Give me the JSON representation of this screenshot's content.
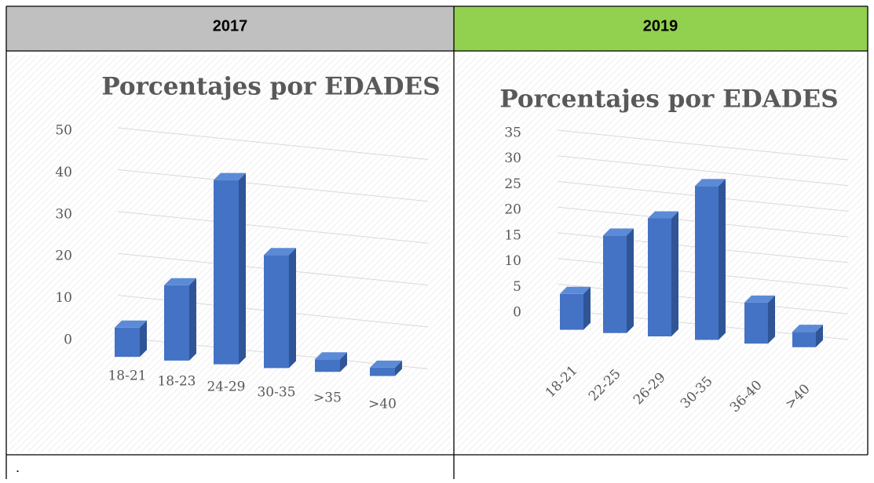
{
  "table": {
    "headers": [
      "2017",
      "2019"
    ],
    "footer": "."
  },
  "chart_data": [
    {
      "type": "bar",
      "title": "Porcentajes por EDADES",
      "categories": [
        "18-21",
        "18-23",
        "24-29",
        "30-35",
        ">35",
        ">40"
      ],
      "values": [
        7,
        18,
        44,
        27,
        3,
        2
      ],
      "color": "#4472c4",
      "ylim": [
        0,
        50
      ],
      "yticks": [
        0,
        10,
        20,
        30,
        40,
        50
      ],
      "grid": true
    },
    {
      "type": "bar",
      "title": "Porcentajes por EDADES",
      "categories": [
        "18-21",
        "22-25",
        "26-29",
        "30-35",
        "36-40",
        ">40"
      ],
      "values": [
        7,
        19,
        23,
        30,
        8,
        3
      ],
      "color": "#4472c4",
      "ylim": [
        0,
        35
      ],
      "yticks": [
        0,
        5,
        10,
        15,
        20,
        25,
        30,
        35
      ],
      "grid": true
    }
  ]
}
